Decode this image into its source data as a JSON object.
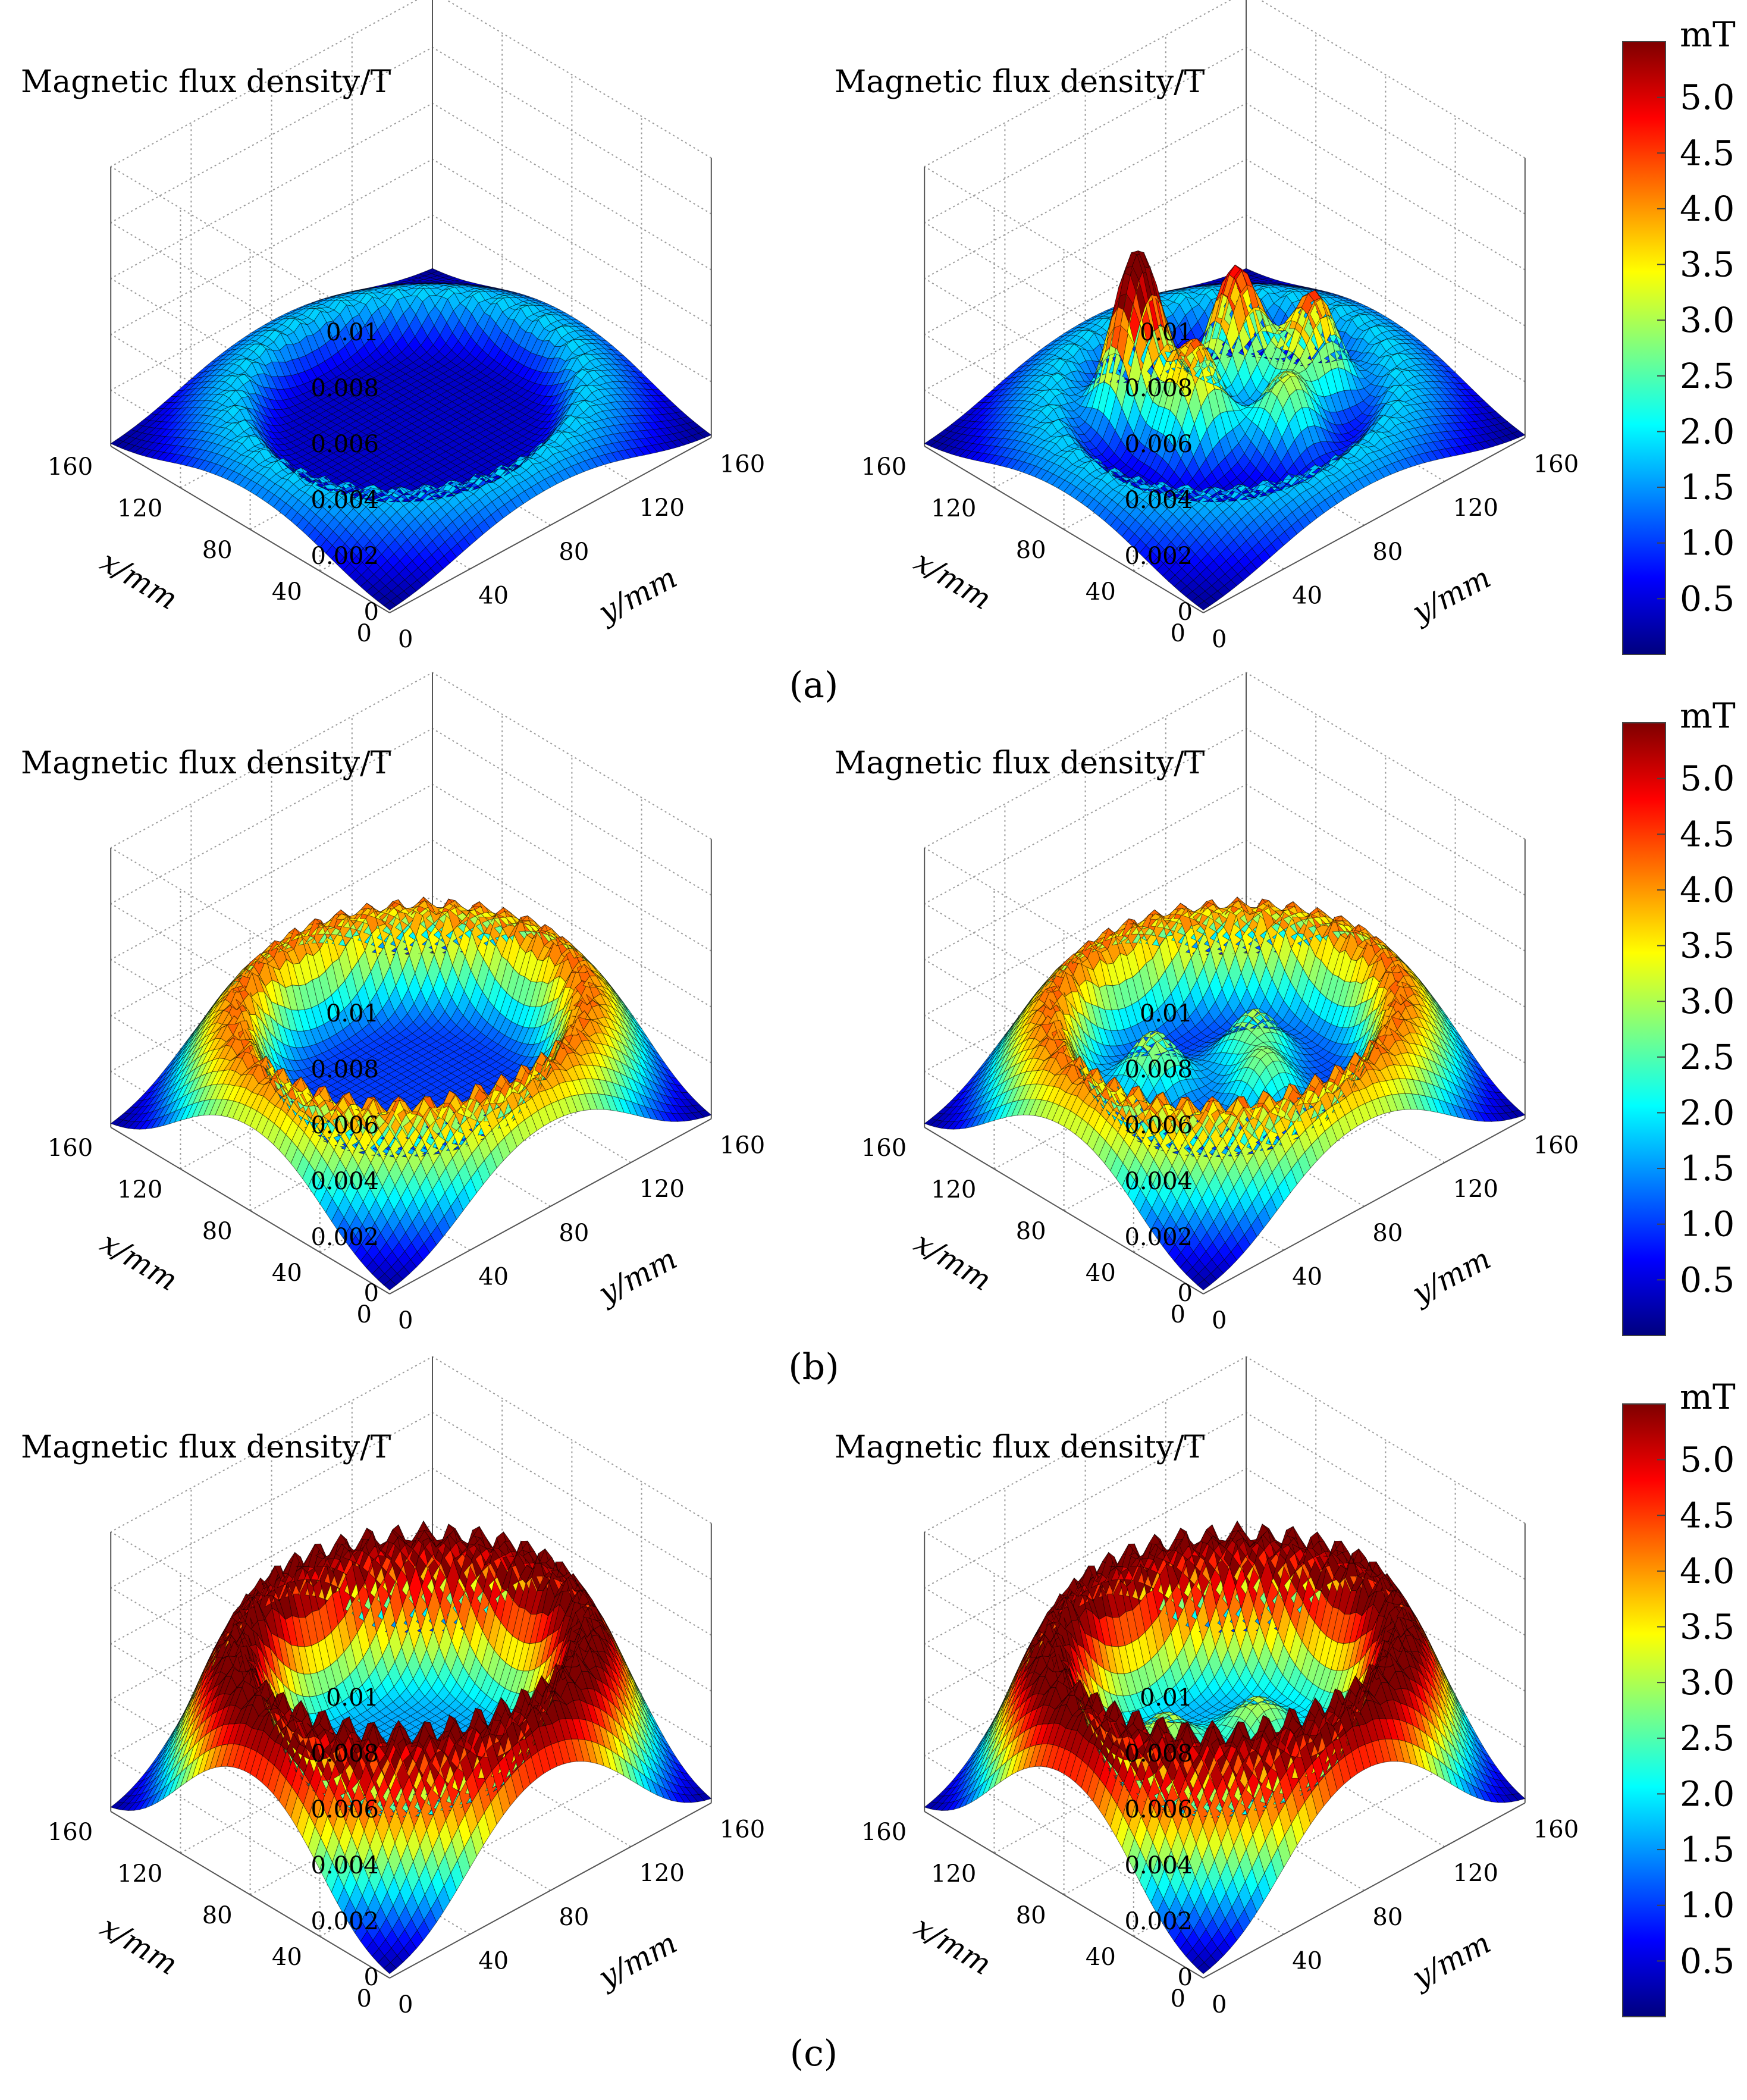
{
  "figure": {
    "colormap": [
      "#00007f",
      "#0000ff",
      "#007fff",
      "#00ffff",
      "#7fff7f",
      "#ffff00",
      "#ff7f00",
      "#ff0000",
      "#7f0000"
    ],
    "gridline_color": "#9a9a9a",
    "mesh_line_color": "#000000"
  },
  "chart_data": [
    {
      "type": "surface3d",
      "row": "a",
      "position": "left",
      "title": "Magnetic flux density/T",
      "xlabel": "x/mm",
      "ylabel": "y/mm",
      "xlim": [
        0,
        160
      ],
      "ylim": [
        0,
        160
      ],
      "zlim": [
        0,
        0.01
      ],
      "xticks": [
        "0",
        "40",
        "80",
        "120",
        "160"
      ],
      "yticks": [
        "0",
        "40",
        "80",
        "120",
        "160"
      ],
      "zticks": [
        "0",
        "0.002",
        "0.004",
        "0.006",
        "0.008",
        "0.01"
      ],
      "ring": {
        "center": [
          80,
          80
        ],
        "radius_mm": 65,
        "peak_T": 0.0018,
        "outer_falloff_mm": 28,
        "inner_falloff_mm": 10,
        "inner_base_T": 0.0004,
        "ripple_count": 40
      },
      "peaks": []
    },
    {
      "type": "surface3d",
      "row": "a",
      "position": "right",
      "title": "Magnetic flux density/T",
      "xlabel": "x/mm",
      "ylabel": "y/mm",
      "xlim": [
        0,
        160
      ],
      "ylim": [
        0,
        160
      ],
      "zlim": [
        0,
        0.01
      ],
      "xticks": [
        "0",
        "40",
        "80",
        "120",
        "160"
      ],
      "yticks": [
        "0",
        "40",
        "80",
        "120",
        "160"
      ],
      "zticks": [
        "0",
        "0.002",
        "0.004",
        "0.006",
        "0.008",
        "0.01"
      ],
      "ring": {
        "center": [
          80,
          80
        ],
        "radius_mm": 65,
        "peak_T": 0.0018,
        "outer_falloff_mm": 28,
        "inner_falloff_mm": 10,
        "inner_base_T": 0.0004,
        "ripple_count": 40
      },
      "peaks": [
        {
          "x": 105,
          "y": 58,
          "amp_T": 0.0064,
          "width_mm": 10
        },
        {
          "x": 92,
          "y": 96,
          "amp_T": 0.0048,
          "width_mm": 10
        },
        {
          "x": 66,
          "y": 112,
          "amp_T": 0.0042,
          "width_mm": 10
        },
        {
          "x": 76,
          "y": 62,
          "amp_T": 0.004,
          "width_mm": 10
        },
        {
          "x": 52,
          "y": 86,
          "amp_T": 0.0028,
          "width_mm": 10
        }
      ]
    },
    {
      "type": "surface3d",
      "row": "b",
      "position": "left",
      "title": "Magnetic flux density/T",
      "xlabel": "x/mm",
      "ylabel": "y/mm",
      "xlim": [
        0,
        160
      ],
      "ylim": [
        0,
        160
      ],
      "zlim": [
        0,
        0.01
      ],
      "xticks": [
        "0",
        "40",
        "80",
        "120",
        "160"
      ],
      "yticks": [
        "0",
        "40",
        "80",
        "120",
        "160"
      ],
      "zticks": [
        "0",
        "0.002",
        "0.004",
        "0.006",
        "0.008",
        "0.01"
      ],
      "ring": {
        "center": [
          80,
          80
        ],
        "radius_mm": 65,
        "peak_T": 0.0042,
        "outer_falloff_mm": 26,
        "inner_falloff_mm": 12,
        "inner_base_T": 0.001,
        "ripple_count": 40
      },
      "peaks": []
    },
    {
      "type": "surface3d",
      "row": "b",
      "position": "right",
      "title": "Magnetic flux density/T",
      "xlabel": "x/mm",
      "ylabel": "y/mm",
      "xlim": [
        0,
        160
      ],
      "ylim": [
        0,
        160
      ],
      "zlim": [
        0,
        0.01
      ],
      "xticks": [
        "0",
        "40",
        "80",
        "120",
        "160"
      ],
      "yticks": [
        "0",
        "40",
        "80",
        "120",
        "160"
      ],
      "zticks": [
        "0",
        "0.002",
        "0.004",
        "0.006",
        "0.008",
        "0.01"
      ],
      "ring": {
        "center": [
          80,
          80
        ],
        "radius_mm": 65,
        "peak_T": 0.0042,
        "outer_falloff_mm": 26,
        "inner_falloff_mm": 12,
        "inner_base_T": 0.001,
        "ripple_count": 40
      },
      "peaks": [
        {
          "x": 100,
          "y": 62,
          "amp_T": 0.0022,
          "width_mm": 10
        },
        {
          "x": 86,
          "y": 100,
          "amp_T": 0.002,
          "width_mm": 10
        },
        {
          "x": 64,
          "y": 86,
          "amp_T": 0.0018,
          "width_mm": 10
        }
      ]
    },
    {
      "type": "surface3d",
      "row": "c",
      "position": "left",
      "title": "Magnetic flux density/T",
      "xlabel": "x/mm",
      "ylabel": "y/mm",
      "xlim": [
        0,
        160
      ],
      "ylim": [
        0,
        160
      ],
      "zlim": [
        0,
        0.01
      ],
      "xticks": [
        "0",
        "40",
        "80",
        "120",
        "160"
      ],
      "yticks": [
        "0",
        "40",
        "80",
        "120",
        "160"
      ],
      "zticks": [
        "0",
        "0.002",
        "0.004",
        "0.006",
        "0.008",
        "0.01"
      ],
      "ring": {
        "center": [
          80,
          80
        ],
        "radius_mm": 65,
        "peak_T": 0.0062,
        "outer_falloff_mm": 25,
        "inner_falloff_mm": 14,
        "inner_base_T": 0.0016,
        "ripple_count": 40
      },
      "peaks": []
    },
    {
      "type": "surface3d",
      "row": "c",
      "position": "right",
      "title": "Magnetic flux density/T",
      "xlabel": "x/mm",
      "ylabel": "y/mm",
      "xlim": [
        0,
        160
      ],
      "ylim": [
        0,
        160
      ],
      "zlim": [
        0,
        0.01
      ],
      "xticks": [
        "0",
        "40",
        "80",
        "120",
        "160"
      ],
      "yticks": [
        "0",
        "40",
        "80",
        "120",
        "160"
      ],
      "zticks": [
        "0",
        "0.002",
        "0.004",
        "0.006",
        "0.008",
        "0.01"
      ],
      "ring": {
        "center": [
          80,
          80
        ],
        "radius_mm": 65,
        "peak_T": 0.0062,
        "outer_falloff_mm": 25,
        "inner_falloff_mm": 14,
        "inner_base_T": 0.0016,
        "ripple_count": 40
      },
      "peaks": [
        {
          "x": 98,
          "y": 66,
          "amp_T": 0.0016,
          "width_mm": 10
        },
        {
          "x": 82,
          "y": 98,
          "amp_T": 0.0015,
          "width_mm": 10
        }
      ]
    }
  ],
  "panel_captions": [
    "(a)",
    "(b)",
    "(c)"
  ],
  "colorbars": [
    {
      "row": "a",
      "unit": "mT",
      "min": 0,
      "max": 5.5,
      "ticks": [
        "0.5",
        "1.0",
        "1.5",
        "2.0",
        "2.5",
        "3.0",
        "3.5",
        "4.0",
        "4.5",
        "5.0"
      ]
    },
    {
      "row": "b",
      "unit": "mT",
      "min": 0,
      "max": 5.5,
      "ticks": [
        "0.5",
        "1.0",
        "1.5",
        "2.0",
        "2.5",
        "3.0",
        "3.5",
        "4.0",
        "4.5",
        "5.0"
      ]
    },
    {
      "row": "c",
      "unit": "mT",
      "min": 0,
      "max": 5.5,
      "ticks": [
        "0.5",
        "1.0",
        "1.5",
        "2.0",
        "2.5",
        "3.0",
        "3.5",
        "4.0",
        "4.5",
        "5.0"
      ]
    }
  ]
}
